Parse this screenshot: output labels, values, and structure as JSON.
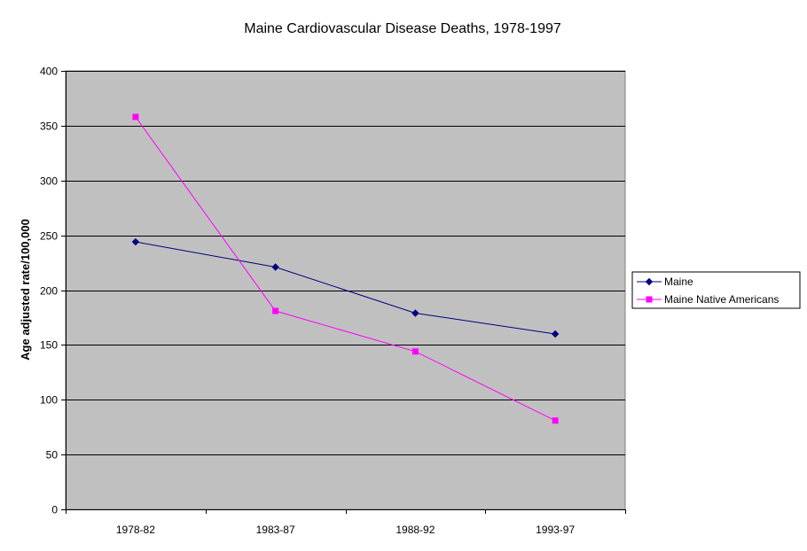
{
  "chart_data": {
    "type": "line",
    "title": "Maine Cardiovascular Disease Deaths, 1978-1997",
    "xlabel": "",
    "ylabel": "Age adjusted rate/100,000",
    "categories": [
      "1978-82",
      "1983-87",
      "1988-92",
      "1993-97"
    ],
    "ylim": [
      0,
      400
    ],
    "yticks": [
      0,
      50,
      100,
      150,
      200,
      250,
      300,
      350,
      400
    ],
    "grid": true,
    "legend_position": "right",
    "plot_background": "#c0c0c0",
    "series": [
      {
        "name": "Maine",
        "values": [
          244,
          221,
          179,
          160
        ],
        "color": "#000080",
        "marker": "diamond"
      },
      {
        "name": "Maine Native Americans",
        "values": [
          358,
          181,
          144,
          81
        ],
        "color": "#ff00ff",
        "marker": "square"
      }
    ]
  }
}
